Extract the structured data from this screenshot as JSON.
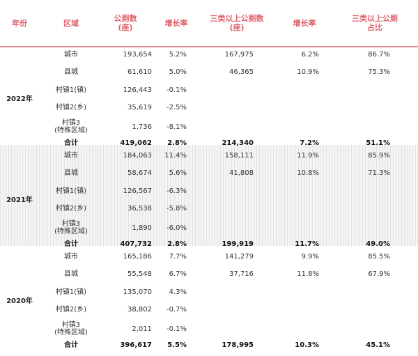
{
  "header": {
    "year": "年份",
    "region": "区域",
    "toilets": "公厕数\n(座)",
    "growth1": "增长率",
    "class3": "三类以上公厕数\n(座)",
    "growth2": "增长率",
    "ratio": "三类以上公厕\n占比"
  },
  "groups": [
    {
      "year": "2022年",
      "rows": [
        {
          "region": "城市",
          "toilets": "193,654",
          "growth1": "5.2%",
          "class3": "167,975",
          "growth2": "6.2%",
          "ratio": "86.7%"
        },
        {
          "region": "县城",
          "toilets": "61,610",
          "growth1": "5.0%",
          "class3": "46,365",
          "growth2": "10.9%",
          "ratio": "75.3%"
        },
        {
          "region": "村镇1(镇)",
          "toilets": "126,443",
          "growth1": "-0.1%",
          "class3": "",
          "growth2": "",
          "ratio": ""
        },
        {
          "region": "村镇2(乡)",
          "toilets": "35,619",
          "growth1": "-2.5%",
          "class3": "",
          "growth2": "",
          "ratio": ""
        },
        {
          "region": "村镇3\n(特殊区域)",
          "toilets": "1,736",
          "growth1": "-8.1%",
          "class3": "",
          "growth2": "",
          "ratio": ""
        },
        {
          "region": "合计",
          "toilets": "419,062",
          "growth1": "2.8%",
          "class3": "214,340",
          "growth2": "7.2%",
          "ratio": "51.1%"
        }
      ]
    },
    {
      "year": "2021年",
      "rows": [
        {
          "region": "城市",
          "toilets": "184,063",
          "growth1": "11.4%",
          "class3": "158,111",
          "growth2": "11.9%",
          "ratio": "85.9%"
        },
        {
          "region": "县城",
          "toilets": "58,674",
          "growth1": "5.6%",
          "class3": "41,808",
          "growth2": "10.8%",
          "ratio": "71.3%"
        },
        {
          "region": "村镇1(镇)",
          "toilets": "126,567",
          "growth1": "-6.3%",
          "class3": "",
          "growth2": "",
          "ratio": ""
        },
        {
          "region": "村镇2(乡)",
          "toilets": "36,538",
          "growth1": "-5.8%",
          "class3": "",
          "growth2": "",
          "ratio": ""
        },
        {
          "region": "村镇3\n(特殊区域)",
          "toilets": "1,890",
          "growth1": "-6.0%",
          "class3": "",
          "growth2": "",
          "ratio": ""
        },
        {
          "region": "合计",
          "toilets": "407,732",
          "growth1": "2.8%",
          "class3": "199,919",
          "growth2": "11.7%",
          "ratio": "49.0%"
        }
      ]
    },
    {
      "year": "2020年",
      "rows": [
        {
          "region": "城市",
          "toilets": "165,186",
          "growth1": "7.7%",
          "class3": "141,279",
          "growth2": "9.9%",
          "ratio": "85.5%"
        },
        {
          "region": "县城",
          "toilets": "55,548",
          "growth1": "6.7%",
          "class3": "37,716",
          "growth2": "11.8%",
          "ratio": "67.9%"
        },
        {
          "region": "村镇1(镇)",
          "toilets": "135,070",
          "growth1": "4.3%",
          "class3": "",
          "growth2": "",
          "ratio": ""
        },
        {
          "region": "村镇2(乡)",
          "toilets": "38,802",
          "growth1": "-0.7%",
          "class3": "",
          "growth2": "",
          "ratio": ""
        },
        {
          "region": "村镇3\n(特殊区域)",
          "toilets": "2,011",
          "growth1": "-0.1%",
          "class3": "",
          "growth2": "",
          "ratio": ""
        },
        {
          "region": "合计",
          "toilets": "396,617",
          "growth1": "5.5%",
          "class3": "178,995",
          "growth2": "10.3%",
          "ratio": "45.1%"
        }
      ]
    }
  ],
  "colors": {
    "header_text": "#e0626c",
    "header_rule": "#e88a91",
    "band_bg": "#f4f4f4"
  }
}
